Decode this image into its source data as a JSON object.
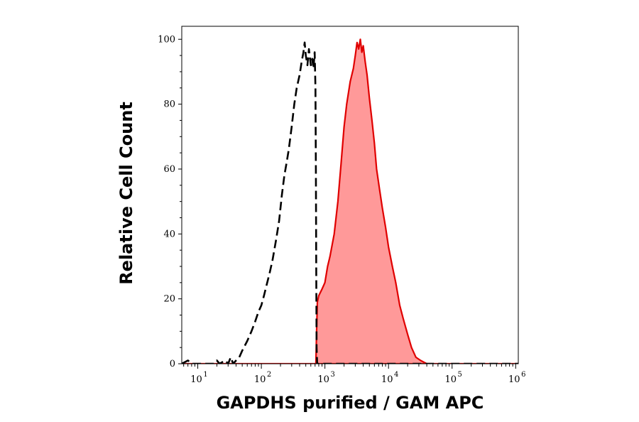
{
  "chart_data": {
    "type": "area",
    "title": "",
    "xlabel": "GAPDHS purified / GAM APC",
    "ylabel": "Relative Cell Count",
    "x_scale": "log",
    "xlim": [
      5.6,
      1100000
    ],
    "ylim": [
      0,
      104
    ],
    "grid": false,
    "x_ticks": [
      {
        "base": "10",
        "exp": "1",
        "value": 10
      },
      {
        "base": "10",
        "exp": "2",
        "value": 100
      },
      {
        "base": "10",
        "exp": "3",
        "value": 1000
      },
      {
        "base": "10",
        "exp": "4",
        "value": 10000
      },
      {
        "base": "10",
        "exp": "5",
        "value": 100000
      },
      {
        "base": "10",
        "exp": "6",
        "value": 1000000
      }
    ],
    "y_ticks": [
      {
        "label": "0",
        "value": 0
      },
      {
        "label": "20",
        "value": 20
      },
      {
        "label": "40",
        "value": 40
      },
      {
        "label": "60",
        "value": 60
      },
      {
        "label": "80",
        "value": 80
      },
      {
        "label": "100",
        "value": 100
      }
    ],
    "series": [
      {
        "style": "dashed-outline",
        "color": "#000000",
        "points": [
          [
            5.6,
            0
          ],
          [
            7,
            1
          ],
          [
            8,
            0
          ],
          [
            12,
            0
          ],
          [
            18,
            0
          ],
          [
            20,
            1
          ],
          [
            22,
            0
          ],
          [
            27,
            1
          ],
          [
            30,
            0
          ],
          [
            33,
            2
          ],
          [
            36,
            0
          ],
          [
            40,
            1
          ],
          [
            45,
            2
          ],
          [
            50,
            4
          ],
          [
            60,
            7
          ],
          [
            70,
            10
          ],
          [
            80,
            13
          ],
          [
            90,
            16
          ],
          [
            100,
            18
          ],
          [
            110,
            21
          ],
          [
            120,
            24
          ],
          [
            135,
            28
          ],
          [
            150,
            32
          ],
          [
            170,
            38
          ],
          [
            190,
            44
          ],
          [
            210,
            52
          ],
          [
            230,
            58
          ],
          [
            250,
            62
          ],
          [
            270,
            66
          ],
          [
            300,
            73
          ],
          [
            330,
            80
          ],
          [
            360,
            85
          ],
          [
            400,
            89
          ],
          [
            430,
            93
          ],
          [
            460,
            96
          ],
          [
            480,
            99
          ],
          [
            500,
            95
          ],
          [
            530,
            92
          ],
          [
            560,
            97
          ],
          [
            600,
            92
          ],
          [
            630,
            94
          ],
          [
            660,
            91
          ],
          [
            690,
            96
          ],
          [
            710,
            85
          ],
          [
            720,
            60
          ],
          [
            730,
            30
          ],
          [
            740,
            5
          ],
          [
            755,
            0
          ],
          [
            1100000,
            0
          ]
        ]
      },
      {
        "style": "filled",
        "color": "#e00000",
        "fill": "#ff9999",
        "points": [
          [
            5.6,
            0
          ],
          [
            700,
            0
          ],
          [
            720,
            0
          ],
          [
            740,
            10
          ],
          [
            760,
            19
          ],
          [
            800,
            21
          ],
          [
            900,
            23
          ],
          [
            1000,
            25
          ],
          [
            1100,
            30
          ],
          [
            1200,
            33
          ],
          [
            1400,
            40
          ],
          [
            1600,
            50
          ],
          [
            1800,
            62
          ],
          [
            2000,
            73
          ],
          [
            2200,
            80
          ],
          [
            2500,
            87
          ],
          [
            2800,
            91
          ],
          [
            3000,
            95
          ],
          [
            3200,
            99
          ],
          [
            3400,
            97
          ],
          [
            3600,
            100
          ],
          [
            3800,
            96
          ],
          [
            4000,
            98
          ],
          [
            4300,
            93
          ],
          [
            4600,
            89
          ],
          [
            5000,
            82
          ],
          [
            5500,
            75
          ],
          [
            6000,
            68
          ],
          [
            6500,
            60
          ],
          [
            7200,
            54
          ],
          [
            8000,
            48
          ],
          [
            9000,
            42
          ],
          [
            10000,
            36
          ],
          [
            11500,
            30
          ],
          [
            13000,
            25
          ],
          [
            15000,
            18
          ],
          [
            17000,
            14
          ],
          [
            20000,
            9
          ],
          [
            23000,
            5
          ],
          [
            27000,
            2
          ],
          [
            32000,
            1
          ],
          [
            40000,
            0
          ],
          [
            1100000,
            0
          ]
        ]
      }
    ]
  }
}
